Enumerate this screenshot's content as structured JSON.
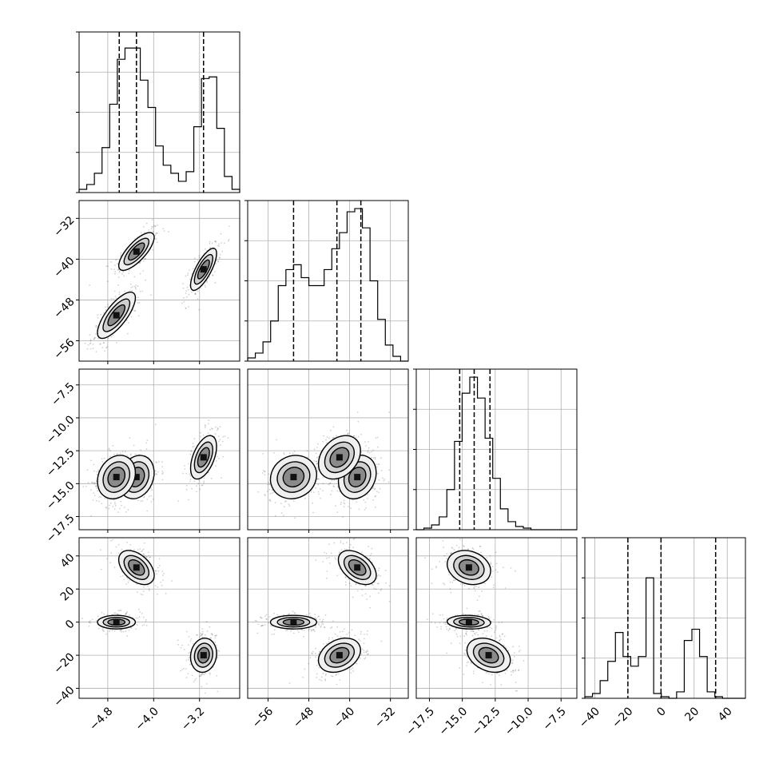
{
  "chart_data": {
    "type": "corner",
    "grid": true,
    "parameters": [
      {
        "ticks": [
          -4.8,
          -4.0,
          -3.2
        ],
        "tick_labels": [
          "−4.8",
          "−4.0",
          "−3.2"
        ],
        "range": [
          -5.3,
          -2.5
        ],
        "quantiles": [
          -4.6,
          -4.3,
          -3.13
        ],
        "hist": [
          0.02,
          0.05,
          0.12,
          0.28,
          0.55,
          0.83,
          0.9,
          0.9,
          0.7,
          0.53,
          0.29,
          0.17,
          0.12,
          0.07,
          0.13,
          0.41,
          0.71,
          0.72,
          0.4,
          0.1,
          0.02
        ]
      },
      {
        "ticks": [
          -56,
          -48,
          -40,
          -32
        ],
        "tick_labels": [
          "−56",
          "−48",
          "−40",
          "−32"
        ],
        "range": [
          -60,
          -28.5
        ],
        "quantiles": [
          -51,
          -42.5,
          -37.8
        ],
        "hist": [
          0.02,
          0.05,
          0.12,
          0.25,
          0.47,
          0.57,
          0.6,
          0.52,
          0.47,
          0.47,
          0.57,
          0.7,
          0.8,
          0.93,
          0.95,
          0.83,
          0.5,
          0.26,
          0.1,
          0.03,
          0.0
        ]
      },
      {
        "ticks": [
          -17.5,
          -15.0,
          -12.5,
          -10.0,
          -7.5
        ],
        "tick_labels": [
          "−17.5",
          "−15.0",
          "−12.5",
          "−10.0",
          "−7.5"
        ],
        "range": [
          -18.5,
          -6.3
        ],
        "quantiles": [
          -15.2,
          -14.1,
          -12.9
        ],
        "hist": [
          0.0,
          0.01,
          0.03,
          0.08,
          0.25,
          0.55,
          0.85,
          0.95,
          0.82,
          0.57,
          0.32,
          0.13,
          0.05,
          0.02,
          0.01,
          0.0,
          0.0,
          0.0,
          0.0,
          0.0,
          0.0
        ]
      },
      {
        "ticks": [
          -40,
          -20,
          0,
          20,
          40
        ],
        "tick_labels": [
          "−40",
          "−20",
          "0",
          "20",
          "40"
        ],
        "range": [
          -46,
          51
        ],
        "quantiles": [
          -20,
          0,
          33
        ],
        "hist": [
          0.01,
          0.03,
          0.11,
          0.23,
          0.41,
          0.26,
          0.2,
          0.26,
          0.75,
          0.03,
          0.01,
          0.0,
          0.04,
          0.36,
          0.43,
          0.26,
          0.04,
          0.01,
          0.0,
          0.0,
          0.0
        ]
      }
    ],
    "modes": [
      {
        "mean": [
          -4.3,
          -38.5,
          -14.5,
          33
        ],
        "sd": [
          0.15,
          1.8,
          0.8,
          5
        ]
      },
      {
        "mean": [
          -4.65,
          -51,
          -14.5,
          0
        ],
        "sd": [
          0.16,
          2.2,
          0.8,
          2
        ]
      },
      {
        "mean": [
          -3.13,
          -42,
          -13.0,
          -20
        ],
        "sd": [
          0.11,
          2.0,
          0.8,
          5
        ]
      }
    ]
  }
}
